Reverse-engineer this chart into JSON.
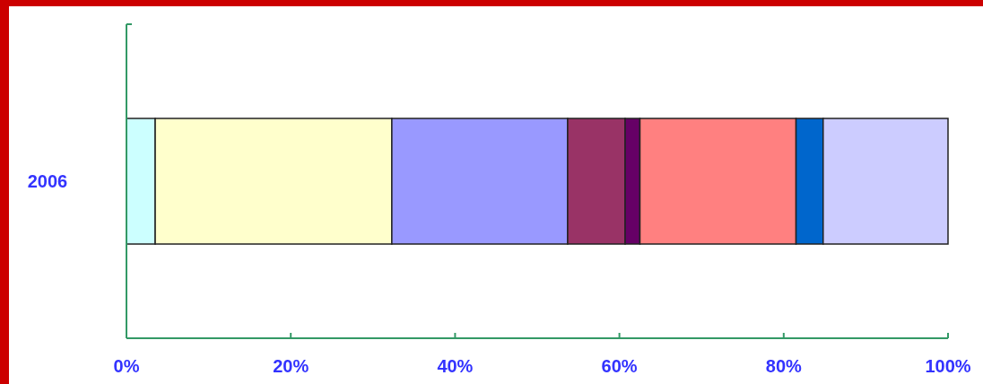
{
  "chart_data": {
    "type": "bar",
    "orientation": "horizontal",
    "stacked": true,
    "categories": [
      "2006"
    ],
    "series": [
      {
        "color": "#ccffff",
        "values": [
          3.5
        ]
      },
      {
        "color": "#ffffcc",
        "values": [
          28.8
        ]
      },
      {
        "color": "#9999ff",
        "values": [
          21.4
        ]
      },
      {
        "color": "#993366",
        "values": [
          7.0
        ]
      },
      {
        "color": "#660066",
        "values": [
          1.8
        ]
      },
      {
        "color": "#ff8080",
        "values": [
          19.0
        ]
      },
      {
        "color": "#0066cc",
        "values": [
          3.3
        ]
      },
      {
        "color": "#ccccff",
        "values": [
          15.2
        ]
      }
    ],
    "xlim": [
      0,
      100
    ],
    "xticks": [
      {
        "value": 0,
        "label": "0%"
      },
      {
        "value": 20,
        "label": "20%"
      },
      {
        "value": 40,
        "label": "40%"
      },
      {
        "value": 60,
        "label": "60%"
      },
      {
        "value": 80,
        "label": "80%"
      },
      {
        "value": 100,
        "label": "100%"
      }
    ]
  }
}
